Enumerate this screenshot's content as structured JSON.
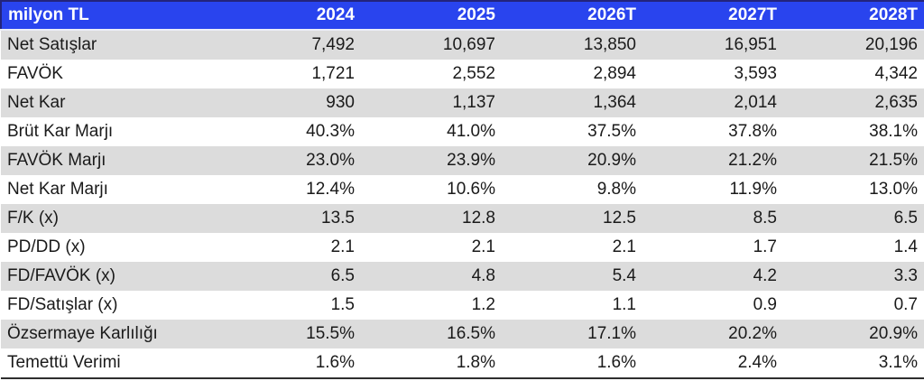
{
  "table": {
    "unit_label": "milyon TL",
    "columns": [
      "2024",
      "2025",
      "2026T",
      "2027T",
      "2028T"
    ],
    "rows": [
      {
        "label": "Net Satışlar",
        "values": [
          "7,492",
          "10,697",
          "13,850",
          "16,951",
          "20,196"
        ]
      },
      {
        "label": "FAVÖK",
        "values": [
          "1,721",
          "2,552",
          "2,894",
          "3,593",
          "4,342"
        ]
      },
      {
        "label": "Net Kar",
        "values": [
          "930",
          "1,137",
          "1,364",
          "2,014",
          "2,635"
        ]
      },
      {
        "label": "Brüt Kar Marjı",
        "values": [
          "40.3%",
          "41.0%",
          "37.5%",
          "37.8%",
          "38.1%"
        ]
      },
      {
        "label": "FAVÖK Marjı",
        "values": [
          "23.0%",
          "23.9%",
          "20.9%",
          "21.2%",
          "21.5%"
        ]
      },
      {
        "label": "Net Kar Marjı",
        "values": [
          "12.4%",
          "10.6%",
          "9.8%",
          "11.9%",
          "13.0%"
        ]
      },
      {
        "label": "F/K (x)",
        "values": [
          "13.5",
          "12.8",
          "12.5",
          "8.5",
          "6.5"
        ]
      },
      {
        "label": "PD/DD (x)",
        "values": [
          "2.1",
          "2.1",
          "2.1",
          "1.7",
          "1.4"
        ]
      },
      {
        "label": "FD/FAVÖK (x)",
        "values": [
          "6.5",
          "4.8",
          "5.4",
          "4.2",
          "3.3"
        ]
      },
      {
        "label": "FD/Satışlar (x)",
        "values": [
          "1.5",
          "1.2",
          "1.1",
          "0.9",
          "0.7"
        ]
      },
      {
        "label": "Özsermaye Karlılığı",
        "values": [
          "15.5%",
          "16.5%",
          "17.1%",
          "20.2%",
          "20.9%"
        ]
      },
      {
        "label": "Temettü Verimi",
        "values": [
          "1.6%",
          "1.8%",
          "1.6%",
          "2.4%",
          "3.1%"
        ]
      }
    ]
  },
  "colors": {
    "header_bg": "#2944ee",
    "header_text": "#ffffff",
    "header_top_border": "#23247b",
    "stripe_row_bg": "#dcdcdc",
    "plain_row_bg": "#ffffff",
    "body_text": "#1a1a1a",
    "bottom_border": "#2e2e2e"
  },
  "chart_data": {
    "type": "table",
    "title": "milyon TL",
    "columns": [
      "milyon TL",
      "2024",
      "2025",
      "2026T",
      "2027T",
      "2028T"
    ],
    "rows": [
      [
        "Net Satışlar",
        "7,492",
        "10,697",
        "13,850",
        "16,951",
        "20,196"
      ],
      [
        "FAVÖK",
        "1,721",
        "2,552",
        "2,894",
        "3,593",
        "4,342"
      ],
      [
        "Net Kar",
        "930",
        "1,137",
        "1,364",
        "2,014",
        "2,635"
      ],
      [
        "Brüt Kar Marjı",
        "40.3%",
        "41.0%",
        "37.5%",
        "37.8%",
        "38.1%"
      ],
      [
        "FAVÖK Marjı",
        "23.0%",
        "23.9%",
        "20.9%",
        "21.2%",
        "21.5%"
      ],
      [
        "Net Kar Marjı",
        "12.4%",
        "10.6%",
        "9.8%",
        "11.9%",
        "13.0%"
      ],
      [
        "F/K (x)",
        "13.5",
        "12.8",
        "12.5",
        "8.5",
        "6.5"
      ],
      [
        "PD/DD (x)",
        "2.1",
        "2.1",
        "2.1",
        "1.7",
        "1.4"
      ],
      [
        "FD/FAVÖK (x)",
        "6.5",
        "4.8",
        "5.4",
        "4.2",
        "3.3"
      ],
      [
        "FD/Satışlar (x)",
        "1.5",
        "1.2",
        "1.1",
        "0.9",
        "0.7"
      ],
      [
        "Özsermaye Karlılığı",
        "15.5%",
        "16.5%",
        "17.1%",
        "20.2%",
        "20.9%"
      ],
      [
        "Temettü Verimi",
        "1.6%",
        "1.8%",
        "1.6%",
        "2.4%",
        "3.1%"
      ]
    ]
  }
}
